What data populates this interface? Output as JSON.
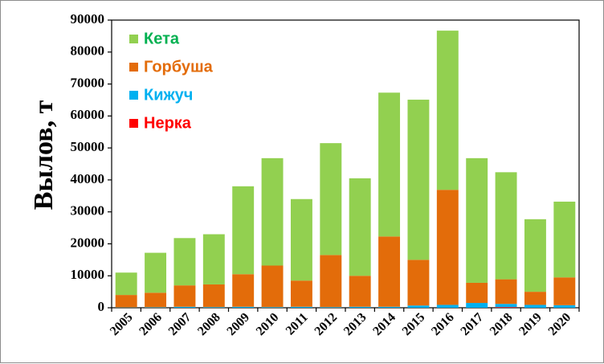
{
  "chart_data": {
    "type": "bar",
    "stacked": true,
    "title": "",
    "xlabel": "",
    "ylabel": "Вылов, т",
    "ylim": [
      0,
      90000
    ],
    "yticks": [
      0,
      10000,
      20000,
      30000,
      40000,
      50000,
      60000,
      70000,
      80000,
      90000
    ],
    "ytick_labels": [
      "0",
      "10000",
      "20000",
      "30000",
      "40000",
      "50000",
      "60000",
      "70000",
      "80000",
      "90000"
    ],
    "grid": false,
    "legend_position": "top-left",
    "categories": [
      "2005",
      "2006",
      "2007",
      "2008",
      "2009",
      "2010",
      "2011",
      "2012",
      "2013",
      "2014",
      "2015",
      "2016",
      "2017",
      "2018",
      "2019",
      "2020"
    ],
    "series": [
      {
        "name": "Нерка",
        "color": "#ff0000",
        "text_color": "#ff0000",
        "values": [
          0,
          0,
          0,
          0,
          0,
          0,
          0,
          0,
          0,
          0,
          0,
          0,
          0,
          200,
          0,
          0
        ]
      },
      {
        "name": "Кижуч",
        "color": "#00b0f0",
        "text_color": "#00b0f0",
        "values": [
          100,
          150,
          300,
          200,
          300,
          200,
          300,
          200,
          300,
          300,
          700,
          900,
          1500,
          1000,
          900,
          800
        ]
      },
      {
        "name": "Горбуша",
        "color": "#e36c0a",
        "text_color": "#e36c0a",
        "values": [
          3900,
          4550,
          6700,
          7100,
          10200,
          13000,
          8200,
          16300,
          9700,
          22000,
          14300,
          36000,
          6300,
          7700,
          4100,
          8700
        ]
      },
      {
        "name": "Кета",
        "color": "#92d050",
        "text_color": "#00b050",
        "values": [
          7000,
          12500,
          14800,
          15700,
          27500,
          33600,
          25500,
          35000,
          30500,
          45000,
          50100,
          49800,
          39000,
          33500,
          22700,
          23700
        ]
      }
    ],
    "legend_order": [
      "Кета",
      "Горбуша",
      "Кижуч",
      "Нерка"
    ]
  }
}
